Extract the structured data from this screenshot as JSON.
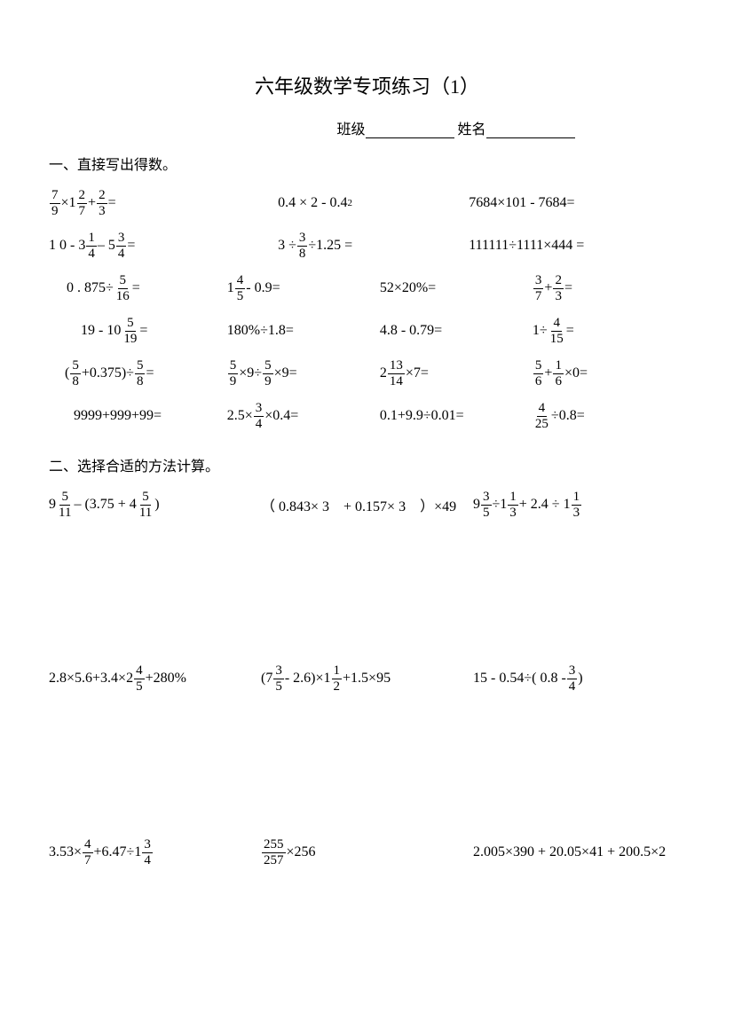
{
  "title": "六年级数学专项练习（1）",
  "info": {
    "class_label": "班级",
    "name_label": "姓名"
  },
  "section1": {
    "heading": "一、直接写出得数。",
    "rows": [
      {
        "cols": 3,
        "cells": [
          {
            "type": "expr",
            "parts": [
              {
                "f": [
                  "7",
                  "9"
                ]
              },
              {
                "t": "×1"
              },
              {
                "f": [
                  "2",
                  "7"
                ]
              },
              {
                "t": " + "
              },
              {
                "f": [
                  "2",
                  "3"
                ]
              },
              {
                "t": " ="
              }
            ]
          },
          {
            "type": "expr",
            "parts": [
              {
                "t": "0.4 × 2  -  0.4"
              },
              {
                "sub": "2"
              }
            ]
          },
          {
            "type": "text",
            "text": "7684×101 - 7684="
          }
        ]
      },
      {
        "cols": 3,
        "cells": [
          {
            "type": "expr",
            "parts": [
              {
                "t": "1 0  -  3 "
              },
              {
                "f": [
                  "1",
                  "4"
                ]
              },
              {
                "t": " – 5"
              },
              {
                "f": [
                  "3",
                  "4"
                ]
              },
              {
                "t": " ="
              }
            ]
          },
          {
            "type": "expr",
            "parts": [
              {
                "t": "3 ÷ "
              },
              {
                "f": [
                  "3",
                  "8"
                ]
              },
              {
                "t": " ÷1.25 ="
              }
            ]
          },
          {
            "type": "text",
            "text": "111111÷1111×444 ="
          }
        ]
      },
      {
        "cols": 4,
        "cells": [
          {
            "type": "expr",
            "indent": 20,
            "parts": [
              {
                "t": "0 . 875÷"
              },
              {
                "f": [
                  "5",
                  "16"
                ]
              },
              {
                "t": " ="
              }
            ]
          },
          {
            "type": "expr",
            "parts": [
              {
                "t": "1"
              },
              {
                "f": [
                  "4",
                  "5"
                ]
              },
              {
                "t": "  - 0.9="
              }
            ]
          },
          {
            "type": "text",
            "text": "52×20%="
          },
          {
            "type": "expr",
            "parts": [
              {
                "f": [
                  "3",
                  "7"
                ]
              },
              {
                "t": " + "
              },
              {
                "f": [
                  "2",
                  "3"
                ]
              },
              {
                "t": " ="
              }
            ]
          }
        ]
      },
      {
        "cols": 4,
        "cells": [
          {
            "type": "expr",
            "indent": 36,
            "parts": [
              {
                "t": "19 - 10"
              },
              {
                "f": [
                  "5",
                  "19"
                ]
              },
              {
                "t": " ="
              }
            ]
          },
          {
            "type": "text",
            "text": "180%÷1.8="
          },
          {
            "type": "text",
            "text": "4.8 - 0.79="
          },
          {
            "type": "expr",
            "parts": [
              {
                "t": "1÷"
              },
              {
                "f": [
                  "4",
                  "15"
                ]
              },
              {
                "t": " ="
              }
            ]
          }
        ]
      },
      {
        "cols": 4,
        "cells": [
          {
            "type": "expr",
            "indent": 18,
            "parts": [
              {
                "t": "("
              },
              {
                "f": [
                  "5",
                  "8"
                ]
              },
              {
                "t": " +0.375)÷"
              },
              {
                "f": [
                  "5",
                  "8"
                ]
              },
              {
                "t": " ="
              }
            ]
          },
          {
            "type": "expr",
            "parts": [
              {
                "f": [
                  "5",
                  "9"
                ]
              },
              {
                "t": " ×9÷"
              },
              {
                "f": [
                  "5",
                  "9"
                ]
              },
              {
                "t": " ×9="
              }
            ]
          },
          {
            "type": "expr",
            "parts": [
              {
                "t": "2"
              },
              {
                "f": [
                  "13",
                  "14"
                ]
              },
              {
                "t": " ×7="
              }
            ]
          },
          {
            "type": "expr",
            "parts": [
              {
                "f": [
                  "5",
                  "6"
                ]
              },
              {
                "t": " + "
              },
              {
                "f": [
                  "1",
                  "6"
                ]
              },
              {
                "t": " ×0="
              }
            ]
          }
        ]
      },
      {
        "cols": 4,
        "cells": [
          {
            "type": "text",
            "indent": 28,
            "text": "9999+999+99="
          },
          {
            "type": "expr",
            "parts": [
              {
                "t": "2.5× "
              },
              {
                "f": [
                  "3",
                  "4"
                ]
              },
              {
                "t": " ×0.4="
              }
            ]
          },
          {
            "type": "text",
            "text": "0.1+9.9÷0.01="
          },
          {
            "type": "expr",
            "parts": [
              {
                "f": [
                  "4",
                  "25"
                ]
              },
              {
                "t": " ÷0.8="
              }
            ]
          }
        ]
      }
    ]
  },
  "section2": {
    "heading": "二、选择合适的方法计算。",
    "rows": [
      [
        {
          "type": "expr",
          "parts": [
            {
              "t": "9"
            },
            {
              "f": [
                "5",
                "11"
              ]
            },
            {
              "t": " – (3.75 + 4"
            },
            {
              "f": [
                "5",
                "11"
              ]
            },
            {
              "t": ")"
            }
          ]
        },
        {
          "type": "text",
          "text": "（ 0.843× 3　+ 0.157× 3　）×49"
        },
        {
          "type": "expr",
          "parts": [
            {
              "t": "9"
            },
            {
              "f": [
                "3",
                "5"
              ]
            },
            {
              "t": " ÷1"
            },
            {
              "f": [
                "1",
                "3"
              ]
            },
            {
              "t": " + 2.4 ÷ 1"
            },
            {
              "f": [
                "1",
                "3"
              ]
            }
          ]
        }
      ],
      [
        {
          "type": "expr",
          "parts": [
            {
              "t": "2.8×5.6+3.4×2"
            },
            {
              "f": [
                "4",
                "5"
              ]
            },
            {
              "t": " +280%"
            }
          ]
        },
        {
          "type": "expr",
          "parts": [
            {
              "t": "(7"
            },
            {
              "f": [
                "3",
                "5"
              ]
            },
            {
              "t": "  - 2.6)×1"
            },
            {
              "f": [
                "1",
                "2"
              ]
            },
            {
              "t": " +1.5×95"
            }
          ]
        },
        {
          "type": "expr",
          "parts": [
            {
              "t": "15 - 0.54÷( 0.8 -  "
            },
            {
              "f": [
                "3",
                "4"
              ]
            },
            {
              "t": "  )"
            }
          ]
        }
      ],
      [
        {
          "type": "expr",
          "parts": [
            {
              "t": "3.53× "
            },
            {
              "f": [
                "4",
                "7"
              ]
            },
            {
              "t": " +6.47÷1"
            },
            {
              "f": [
                "3",
                "4"
              ]
            }
          ]
        },
        {
          "type": "expr",
          "parts": [
            {
              "f": [
                "255",
                "257"
              ]
            },
            {
              "t": " ×256"
            }
          ]
        },
        {
          "type": "text",
          "text": "2.005×390 + 20.05×41 + 200.5×2"
        }
      ]
    ]
  },
  "layout": {
    "s1_col3_widths": [
      "36%",
      "30%",
      "34%"
    ],
    "s1_col4_widths": [
      "28%",
      "24%",
      "24%",
      "24%"
    ]
  }
}
